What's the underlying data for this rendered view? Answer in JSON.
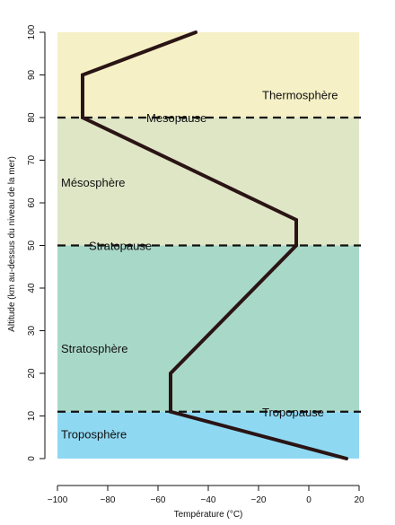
{
  "chart_data": {
    "type": "line",
    "title": "",
    "xlabel": "Température (°C)",
    "ylabel": "Altitude (km au-dessus du niveau de la mer)",
    "xlim": [
      -100,
      20
    ],
    "ylim": [
      0,
      100
    ],
    "xticks": [
      -100,
      -80,
      -60,
      -40,
      -20,
      0,
      20
    ],
    "yticks": [
      0,
      10,
      20,
      30,
      40,
      50,
      60,
      70,
      80,
      90,
      100
    ],
    "grid": false,
    "series": [
      {
        "x": [
          15,
          -55,
          -55,
          -5,
          -5,
          -90,
          -90,
          -45
        ],
        "y": [
          0,
          11,
          20,
          50,
          56,
          80,
          90,
          100
        ]
      }
    ],
    "layers": [
      {
        "name": "Troposphère",
        "y0": 0,
        "y1": 11,
        "color": "#8fd8f2"
      },
      {
        "name": "Stratosphère",
        "y0": 11,
        "y1": 50,
        "color": "#a8d8c8"
      },
      {
        "name": "Mésosphère",
        "y0": 50,
        "y1": 80,
        "color": "#dfe6c6"
      },
      {
        "name": "Thermosphère",
        "y0": 80,
        "y1": 100,
        "color": "#f5f0c6"
      }
    ],
    "boundaries": [
      {
        "name": "Tropopause",
        "y": 11
      },
      {
        "name": "Stratopause",
        "y": 50
      },
      {
        "name": "Mesopause",
        "y": 80
      }
    ]
  }
}
